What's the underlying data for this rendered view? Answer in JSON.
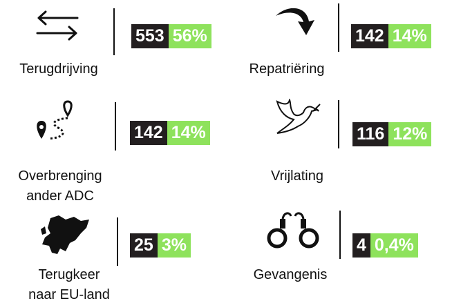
{
  "items": [
    {
      "label": [
        "Terugdrijving"
      ],
      "count": 553,
      "percent": "56%"
    },
    {
      "label": [
        "Repatriëring"
      ],
      "count": 142,
      "percent": "14%"
    },
    {
      "label": [
        "Overbrenging",
        "ander ADC"
      ],
      "count": 142,
      "percent": "14%"
    },
    {
      "label": [
        "Vrijlating"
      ],
      "count": 116,
      "percent": "12%"
    },
    {
      "label": [
        "Terugkeer",
        "naar EU-land"
      ],
      "count": 25,
      "percent": "3%"
    },
    {
      "label": [
        "Gevangenis"
      ],
      "count": 4,
      "percent": "0,4%"
    }
  ]
}
